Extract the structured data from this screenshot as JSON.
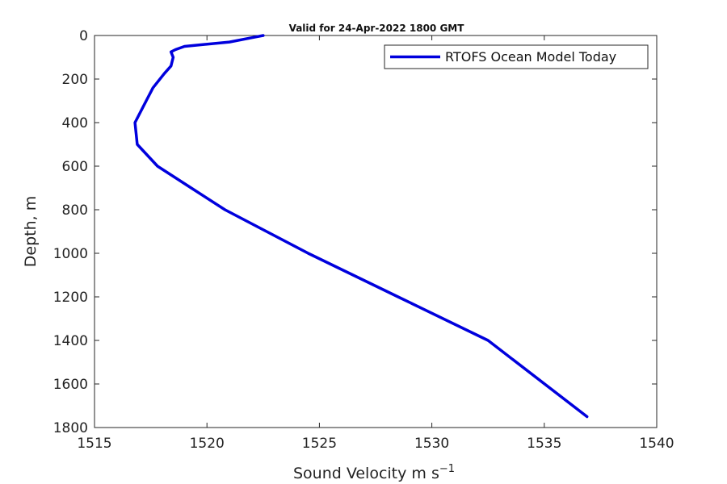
{
  "chart_data": {
    "type": "line",
    "title": "Valid for 24-Apr-2022 1800 GMT",
    "xlabel": "Sound Velocity m s",
    "xlabel_superscript": "−1",
    "ylabel": "Depth, m",
    "xlim": [
      1515,
      1540
    ],
    "ylim": [
      0,
      1800
    ],
    "y_reversed": true,
    "grid": false,
    "legend_position": "top-right",
    "x_ticks": [
      "1515",
      "1520",
      "1525",
      "1530",
      "1535",
      "1540"
    ],
    "y_ticks": [
      "0",
      "200",
      "400",
      "600",
      "800",
      "1000",
      "1200",
      "1400",
      "1600",
      "1800"
    ],
    "series": [
      {
        "name": "RTOFS Ocean Model Today",
        "color": "#0000dd",
        "x": [
          1522.5,
          1522.0,
          1521.0,
          1519.5,
          1519.0,
          1518.6,
          1518.4,
          1518.5,
          1518.4,
          1518.1,
          1517.6,
          1517.3,
          1516.8,
          1516.9,
          1517.8,
          1519.3,
          1520.8,
          1524.5,
          1528.5,
          1532.5,
          1536.9
        ],
        "y": [
          0,
          10,
          30,
          45,
          50,
          65,
          75,
          100,
          140,
          175,
          240,
          300,
          400,
          500,
          600,
          700,
          800,
          1000,
          1200,
          1400,
          1750
        ]
      }
    ]
  }
}
